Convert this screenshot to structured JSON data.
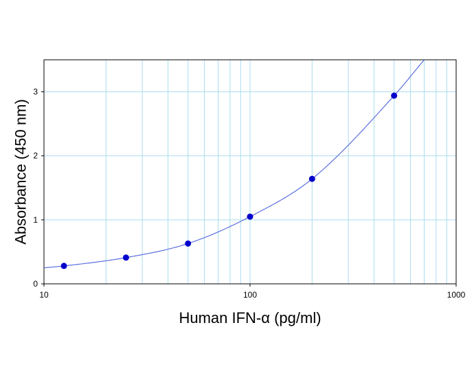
{
  "chart_data": {
    "type": "scatter",
    "xlabel": "Human IFN-α (pg/ml)",
    "ylabel": "Absorbance (450 nm)",
    "x_scale": "log",
    "xlim": [
      10,
      1000
    ],
    "ylim": [
      0,
      3.5
    ],
    "x_ticks": [
      10,
      100,
      1000
    ],
    "x_tick_labels": [
      "10",
      "100",
      "1000"
    ],
    "y_ticks": [
      0,
      1,
      2,
      3
    ],
    "y_tick_labels": [
      "0",
      "1",
      "2",
      "3"
    ],
    "grid": true,
    "legend": "none",
    "series": [
      {
        "x": [
          12.5,
          25,
          50,
          100,
          200,
          500
        ],
        "y": [
          0.28,
          0.41,
          0.63,
          1.05,
          1.64,
          2.94
        ]
      }
    ],
    "fit_curve": {
      "x": [
        10,
        12.5,
        25,
        50,
        100,
        200,
        500,
        700
      ],
      "y": [
        0.25,
        0.28,
        0.41,
        0.63,
        1.05,
        1.64,
        2.94,
        3.5
      ]
    },
    "colors": {
      "points": "#0000cc",
      "curve": "#5b6fe0",
      "grid": "#a9dcef",
      "axes": "#000000"
    }
  }
}
